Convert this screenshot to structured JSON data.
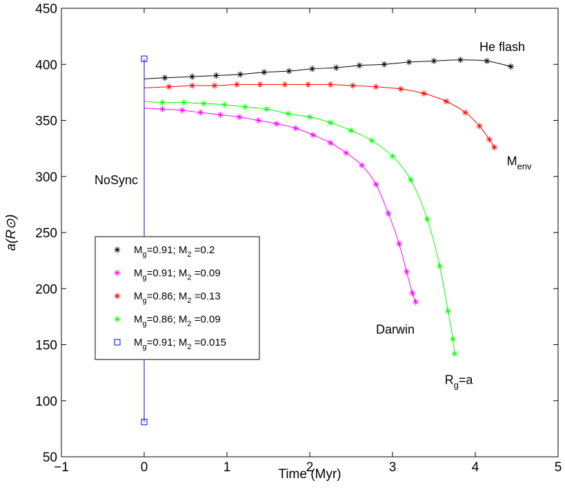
{
  "chart_data": {
    "type": "line",
    "xlabel": "Time (Myr)",
    "ylabel": "a(R⊙)",
    "xlim": [
      -1,
      5
    ],
    "ylim": [
      50,
      450
    ],
    "xticks": [
      -1,
      0,
      1,
      2,
      3,
      4,
      5
    ],
    "yticks": [
      50,
      100,
      150,
      200,
      250,
      300,
      350,
      400,
      450
    ],
    "xtick_labels": [
      "−1",
      "0",
      "1",
      "2",
      "3",
      "4",
      "5"
    ],
    "ytick_labels": [
      "50",
      "100",
      "150",
      "200",
      "250",
      "300",
      "350",
      "400",
      "450"
    ],
    "grid": false,
    "legend_position": "left",
    "colors": {
      "axis": "#000000",
      "black": "#000000",
      "magenta": "#ff00ff",
      "red": "#ff0000",
      "green": "#00ff00",
      "blue": "#0000ff"
    },
    "series": [
      {
        "label_parts": [
          "M",
          "g",
          "=0.91; M",
          "2",
          " =0.2"
        ],
        "color": "#000000",
        "marker": "asterisk",
        "x": [
          0,
          0.25,
          0.58,
          0.87,
          1.16,
          1.45,
          1.75,
          2.03,
          2.32,
          2.6,
          2.9,
          3.2,
          3.5,
          3.82,
          4.14,
          4.43
        ],
        "y": [
          387,
          388,
          389,
          390,
          391,
          393,
          394,
          396,
          397,
          399,
          400,
          402,
          403,
          404,
          403,
          398
        ]
      },
      {
        "label_parts": [
          "M",
          "g",
          "=0.91; M",
          "2",
          " =0.09"
        ],
        "color": "#ff00ff",
        "marker": "asterisk",
        "x": [
          0,
          0.22,
          0.46,
          0.68,
          0.92,
          1.15,
          1.38,
          1.6,
          1.83,
          2.04,
          2.25,
          2.44,
          2.63,
          2.8,
          2.95,
          3.08,
          3.17,
          3.24,
          3.28
        ],
        "y": [
          361,
          360,
          359,
          357,
          355,
          353,
          350,
          347,
          343,
          337,
          330,
          321,
          310,
          293,
          267,
          240,
          215,
          196,
          188
        ]
      },
      {
        "label_parts": [
          "M",
          "g",
          "=0.86; M",
          "2",
          " =0.13"
        ],
        "color": "#ff0000",
        "marker": "asterisk",
        "x": [
          0,
          0.3,
          0.58,
          0.85,
          1.12,
          1.4,
          1.7,
          1.98,
          2.25,
          2.52,
          2.8,
          3.1,
          3.38,
          3.65,
          3.88,
          4.05,
          4.17,
          4.23
        ],
        "y": [
          379,
          380,
          381,
          381,
          382,
          382,
          382,
          382,
          382,
          381,
          380,
          378,
          374,
          367,
          357,
          345,
          333,
          326
        ]
      },
      {
        "label_parts": [
          "M",
          "g",
          "=0.86; M",
          "2",
          " =0.09"
        ],
        "color": "#00ff00",
        "marker": "asterisk",
        "x": [
          0,
          0.22,
          0.48,
          0.72,
          0.97,
          1.22,
          1.48,
          1.74,
          2.0,
          2.25,
          2.5,
          2.75,
          3.0,
          3.22,
          3.42,
          3.57,
          3.67,
          3.73,
          3.75
        ],
        "y": [
          367,
          366,
          366,
          365,
          364,
          362,
          360,
          356,
          353,
          348,
          341,
          332,
          318,
          297,
          262,
          220,
          180,
          155,
          142
        ]
      },
      {
        "label_parts": [
          "M",
          "g",
          "=0.91; M",
          "2",
          " =0.015"
        ],
        "color": "#0000ff",
        "marker": "square",
        "x": [
          0,
          0
        ],
        "y": [
          405,
          81
        ]
      }
    ],
    "annotations": [
      {
        "text": "He flash",
        "x": 4.05,
        "y": 412
      },
      {
        "text": "M",
        "sub": "env",
        "x": 4.38,
        "y": 310
      },
      {
        "text": "NoSync",
        "x": -0.6,
        "y": 293
      },
      {
        "text": "Darwin",
        "x": 2.8,
        "y": 160
      },
      {
        "text": "R",
        "sub": "g",
        "text2": "=a",
        "x": 3.63,
        "y": 115
      }
    ]
  }
}
